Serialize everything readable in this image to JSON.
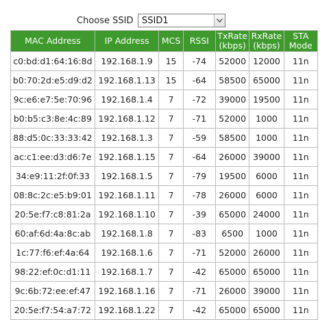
{
  "ssid": {
    "label": "Choose SSID",
    "selected": "SSID1"
  },
  "table": {
    "headers": {
      "mac": "MAC Address",
      "ip": "IP Address",
      "mcs": "MCS",
      "rssi": "RSSI",
      "tx_line1": "TxRate",
      "tx_line2": "(kbps)",
      "rx_line1": "RxRate",
      "rx_line2": "(kbps)",
      "mode_line1": "STA",
      "mode_line2": "Mode"
    },
    "rows": [
      {
        "mac": "c0:bd:d1:64:16:8d",
        "ip": "192.168.1.9",
        "mcs": "15",
        "rssi": "-74",
        "tx": "52000",
        "rx": "12000",
        "mode": "11n"
      },
      {
        "mac": "b0:70:2d:e5:d9:d2",
        "ip": "192.168.1.13",
        "mcs": "15",
        "rssi": "-64",
        "tx": "58500",
        "rx": "65000",
        "mode": "11n"
      },
      {
        "mac": "9c:e6:e7:5e:70:96",
        "ip": "192.168.1.4",
        "mcs": "7",
        "rssi": "-72",
        "tx": "39000",
        "rx": "19500",
        "mode": "11n"
      },
      {
        "mac": "b0:b5:c3:8e:4c:89",
        "ip": "192.168.1.12",
        "mcs": "7",
        "rssi": "-71",
        "tx": "52000",
        "rx": "1000",
        "mode": "11n"
      },
      {
        "mac": "88:d5:0c:33:33:42",
        "ip": "192.168.1.3",
        "mcs": "7",
        "rssi": "-59",
        "tx": "58500",
        "rx": "1000",
        "mode": "11n"
      },
      {
        "mac": "ac:c1:ee:d3:d6:7e",
        "ip": "192.168.1.15",
        "mcs": "7",
        "rssi": "-64",
        "tx": "26000",
        "rx": "39000",
        "mode": "11n"
      },
      {
        "mac": "34:e9:11:2f:0f:33",
        "ip": "192.168.1.5",
        "mcs": "7",
        "rssi": "-79",
        "tx": "19500",
        "rx": "6000",
        "mode": "11n"
      },
      {
        "mac": "08:8c:2c:e5:b9:01",
        "ip": "192.168.1.11",
        "mcs": "7",
        "rssi": "-78",
        "tx": "26000",
        "rx": "6000",
        "mode": "11n"
      },
      {
        "mac": "20:5e:f7:c8:81:2a",
        "ip": "192.168.1.10",
        "mcs": "7",
        "rssi": "-39",
        "tx": "65000",
        "rx": "24000",
        "mode": "11n"
      },
      {
        "mac": "60:af:6d:4a:8c:ab",
        "ip": "192.168.1.8",
        "mcs": "7",
        "rssi": "-83",
        "tx": "6500",
        "rx": "1000",
        "mode": "11n"
      },
      {
        "mac": "1c:77:f6:ef:4a:64",
        "ip": "192.168.1.6",
        "mcs": "7",
        "rssi": "-71",
        "tx": "52000",
        "rx": "26000",
        "mode": "11n"
      },
      {
        "mac": "98:22:ef:0c:d1:11",
        "ip": "192.168.1.7",
        "mcs": "7",
        "rssi": "-42",
        "tx": "65000",
        "rx": "65000",
        "mode": "11n"
      },
      {
        "mac": "9c:6b:72:ee:ef:47",
        "ip": "192.168.1.16",
        "mcs": "7",
        "rssi": "-71",
        "tx": "26000",
        "rx": "39000",
        "mode": "11n"
      },
      {
        "mac": "20:5e:f7:54:a7:72",
        "ip": "192.168.1.22",
        "mcs": "7",
        "rssi": "-42",
        "tx": "65000",
        "rx": "65000",
        "mode": "11n"
      }
    ]
  },
  "colors": {
    "header_bg": "#3f9a2d",
    "header_text": "#ffffff",
    "grid": "#b9b9b9"
  }
}
